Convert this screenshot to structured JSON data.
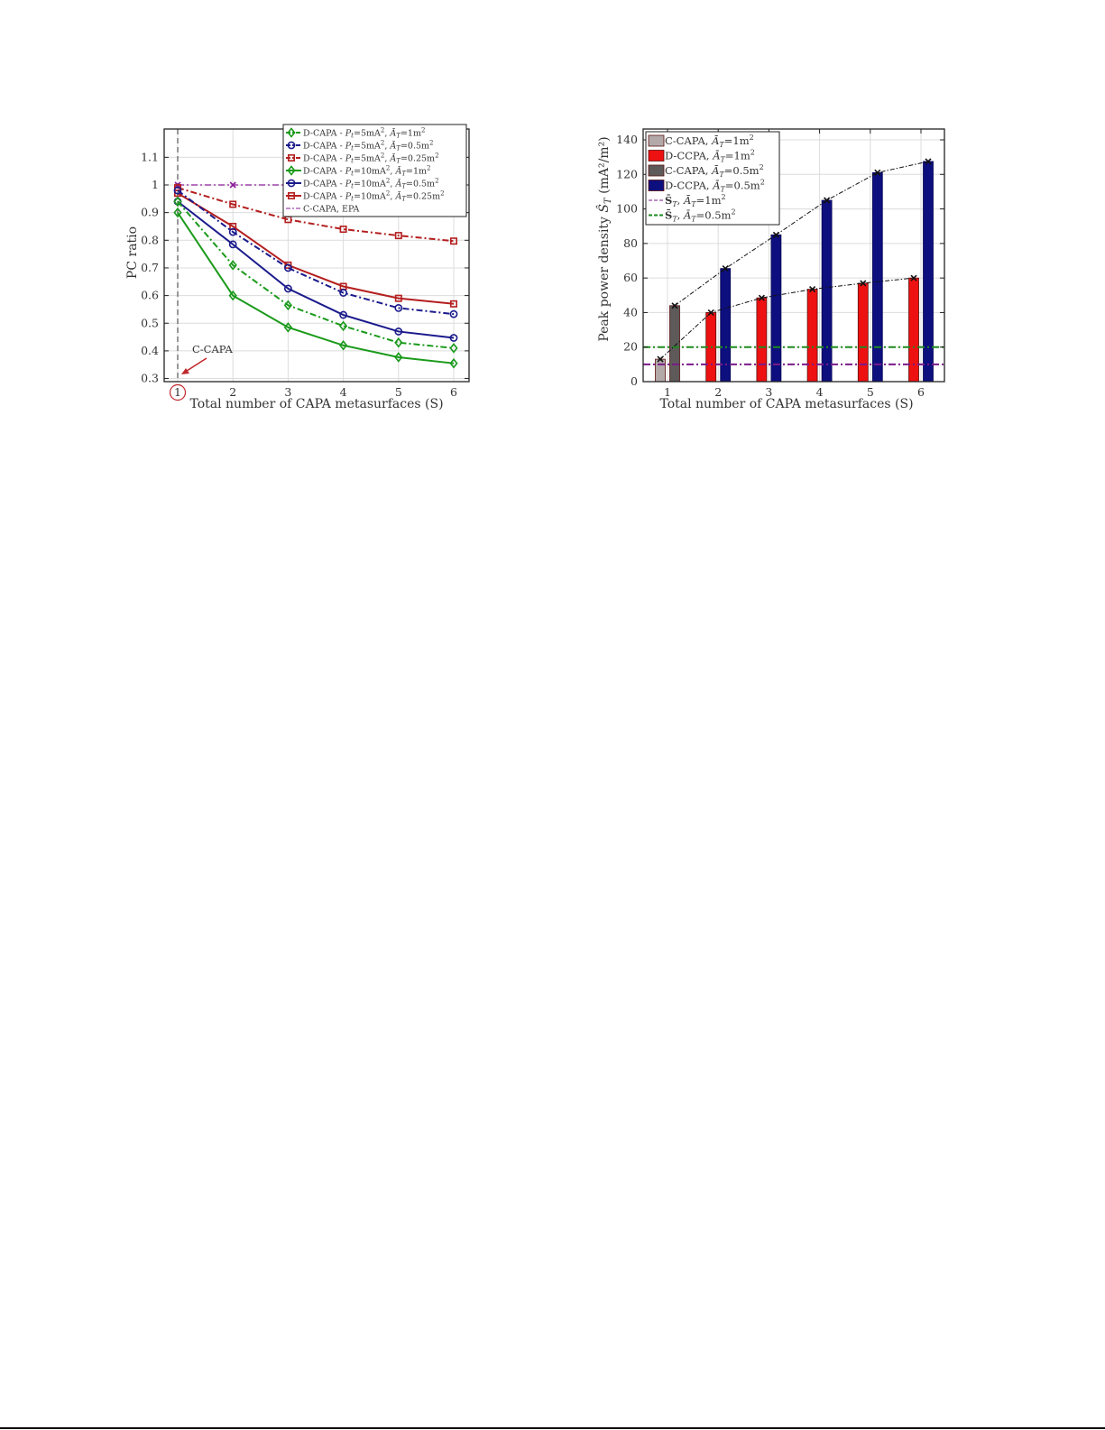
{
  "chart_data": [
    {
      "type": "line",
      "title": "",
      "xlabel": "Total number of CAPA metasurfaces (S)",
      "ylabel": "PC ratio",
      "x": [
        1,
        2,
        3,
        4,
        5,
        6
      ],
      "xticks": [
        "1",
        "2",
        "3",
        "4",
        "5",
        "6"
      ],
      "yticks": [
        "0.3",
        "0.4",
        "0.5",
        "0.6",
        "0.7",
        "0.8",
        "0.9",
        "1",
        "1.1"
      ],
      "ylim": [
        0.3,
        1.19
      ],
      "xlim": [
        0.7,
        6.3
      ],
      "grid": true,
      "legend_position": "upper right",
      "annotation": {
        "text": "C-CAPA",
        "color": "#c0282d",
        "points_to_x": 1,
        "circled_tick": "1"
      },
      "series": [
        {
          "name": "D-CAPA - P_t=5mA², Ā_T=1m²",
          "color": "#1a9a1a",
          "dash": "dashdot",
          "marker": "diamond",
          "values": [
            0.94,
            0.71,
            0.565,
            0.49,
            0.43,
            0.41
          ]
        },
        {
          "name": "D-CAPA - P_t=5mA², Ā_T=0.5m²",
          "color": "#1a1a8c",
          "dash": "dashdot",
          "marker": "circle",
          "values": [
            0.98,
            0.83,
            0.7,
            0.61,
            0.555,
            0.533
          ]
        },
        {
          "name": "D-CAPA - P_t=5mA², Ā_T=0.25m²",
          "color": "#b41e1e",
          "dash": "dashdot",
          "marker": "square",
          "values": [
            0.99,
            0.93,
            0.875,
            0.84,
            0.817,
            0.797
          ]
        },
        {
          "name": "D-CAPA - P_t=10mA², Ā_T=1m²",
          "color": "#1a9a1a",
          "dash": "solid",
          "marker": "diamond",
          "values": [
            0.9,
            0.6,
            0.485,
            0.42,
            0.377,
            0.355
          ]
        },
        {
          "name": "D-CAPA - P_t=10mA², Ā_T=0.5m²",
          "color": "#1a1a8c",
          "dash": "solid",
          "marker": "circle",
          "values": [
            0.94,
            0.785,
            0.625,
            0.53,
            0.47,
            0.447
          ]
        },
        {
          "name": "D-CAPA - P_t=10mA², Ā_T=0.25m²",
          "color": "#b41e1e",
          "dash": "solid",
          "marker": "square",
          "values": [
            0.97,
            0.85,
            0.71,
            0.633,
            0.59,
            0.57
          ]
        },
        {
          "name": "C-CAPA, EPA",
          "color": "#8b1a9a",
          "dash": "dashdot",
          "marker": "x",
          "values": [
            1.0,
            1.0,
            1.0,
            1.0,
            1.0,
            1.0
          ]
        }
      ]
    },
    {
      "type": "bar",
      "title": "",
      "xlabel": "Total number of CAPA metasurfaces (S)",
      "ylabel": "Peak power density Ŝ_T (mA²/m²)",
      "categories": [
        "1",
        "2",
        "3",
        "4",
        "5",
        "6"
      ],
      "yticks": [
        "0",
        "20",
        "40",
        "60",
        "80",
        "100",
        "120",
        "140"
      ],
      "ylim": [
        0,
        146
      ],
      "grid": true,
      "legend_position": "upper left",
      "series": [
        {
          "name": "C-CAPA, Ā_T=1m²",
          "color": "#b3a9a9",
          "values": [
            13,
            null,
            null,
            null,
            null,
            null
          ]
        },
        {
          "name": "D-CCPA, Ā_T=1m²",
          "color": "#ee1111",
          "values": [
            null,
            40,
            48.5,
            53.5,
            57,
            60
          ]
        },
        {
          "name": "C-CAPA, Ā_T=0.5m²",
          "color": "#5e5a5a",
          "values": [
            44,
            null,
            null,
            null,
            null,
            null
          ]
        },
        {
          "name": "D-CCPA, Ā_T=0.5m²",
          "color": "#0d0f7e",
          "values": [
            null,
            65.5,
            85,
            105,
            121,
            127.5
          ]
        }
      ],
      "reference_lines": [
        {
          "name": "S̄_T, Ā_T=1m²",
          "color": "#7a1a8a",
          "value": 10,
          "dash": "dashdot"
        },
        {
          "name": "S̄_T, Ā_T=0.5m²",
          "color": "#1e8a1e",
          "value": 20,
          "dash": "dashdot"
        }
      ],
      "trend_lines": [
        {
          "name": "Ā_T=1m² trend",
          "color": "#111111",
          "points": [
            13,
            40,
            48.5,
            53.5,
            57,
            60
          ]
        },
        {
          "name": "Ā_T=0.5m² trend",
          "color": "#111111",
          "points": [
            44,
            65.5,
            85,
            105,
            121,
            127.5
          ]
        }
      ]
    }
  ],
  "left_chart": {
    "ylabel": "PC ratio",
    "xlabel_prefix": "Total number of CAPA metasurfaces (",
    "xlabel_var": "S",
    "xlabel_suffix": ")",
    "annotation": "C-CAPA",
    "legend": [
      {
        "prefix": "D-CAPA - ",
        "pt": "5mA",
        "at": "1m"
      },
      {
        "prefix": "D-CAPA - ",
        "pt": "5mA",
        "at": "0.5m"
      },
      {
        "prefix": "D-CAPA - ",
        "pt": "5mA",
        "at": "0.25m"
      },
      {
        "prefix": "D-CAPA - ",
        "pt": "10mA",
        "at": "1m"
      },
      {
        "prefix": "D-CAPA - ",
        "pt": "10mA",
        "at": "0.5m"
      },
      {
        "prefix": "D-CAPA - ",
        "pt": "10mA",
        "at": "0.25m"
      },
      {
        "prefix": "C-CAPA, EPA",
        "pt": "",
        "at": ""
      }
    ]
  },
  "right_chart": {
    "ylabel_prefix": "Peak power density ",
    "ylabel_units": "(mA²/m²)",
    "xlabel_prefix": "Total number of CAPA metasurfaces (",
    "xlabel_var": "S",
    "xlabel_suffix": ")",
    "legend": [
      {
        "label": "C-CAPA, ",
        "at": "1m"
      },
      {
        "label": "D-CCPA, ",
        "at": "1m"
      },
      {
        "label": "C-CAPA, ",
        "at": "0.5m"
      },
      {
        "label": "D-CCPA, ",
        "at": "0.5m"
      },
      {
        "label": "S",
        "at": "1m"
      },
      {
        "label": "S",
        "at": "0.5m"
      }
    ]
  }
}
